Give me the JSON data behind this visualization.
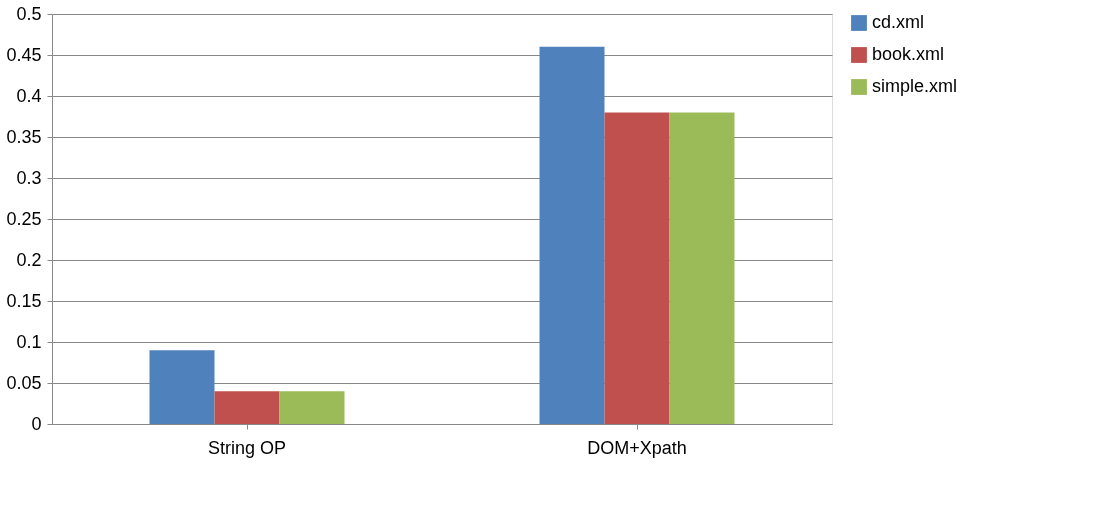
{
  "chart_data": {
    "type": "bar",
    "categories": [
      "String OP",
      "DOM+Xpath"
    ],
    "series": [
      {
        "name": "cd.xml",
        "color": "#4f81bd",
        "values": [
          0.09,
          0.46
        ]
      },
      {
        "name": "book.xml",
        "color": "#c0504d",
        "values": [
          0.04,
          0.38
        ]
      },
      {
        "name": "simple.xml",
        "color": "#9bbb59",
        "values": [
          0.04,
          0.38
        ]
      }
    ],
    "ylim": [
      0,
      0.5
    ],
    "yticks": [
      0,
      0.05,
      0.1,
      0.15,
      0.2,
      0.25,
      0.3,
      0.35,
      0.4,
      0.45,
      0.5
    ],
    "grid": "y",
    "legend": "right"
  }
}
